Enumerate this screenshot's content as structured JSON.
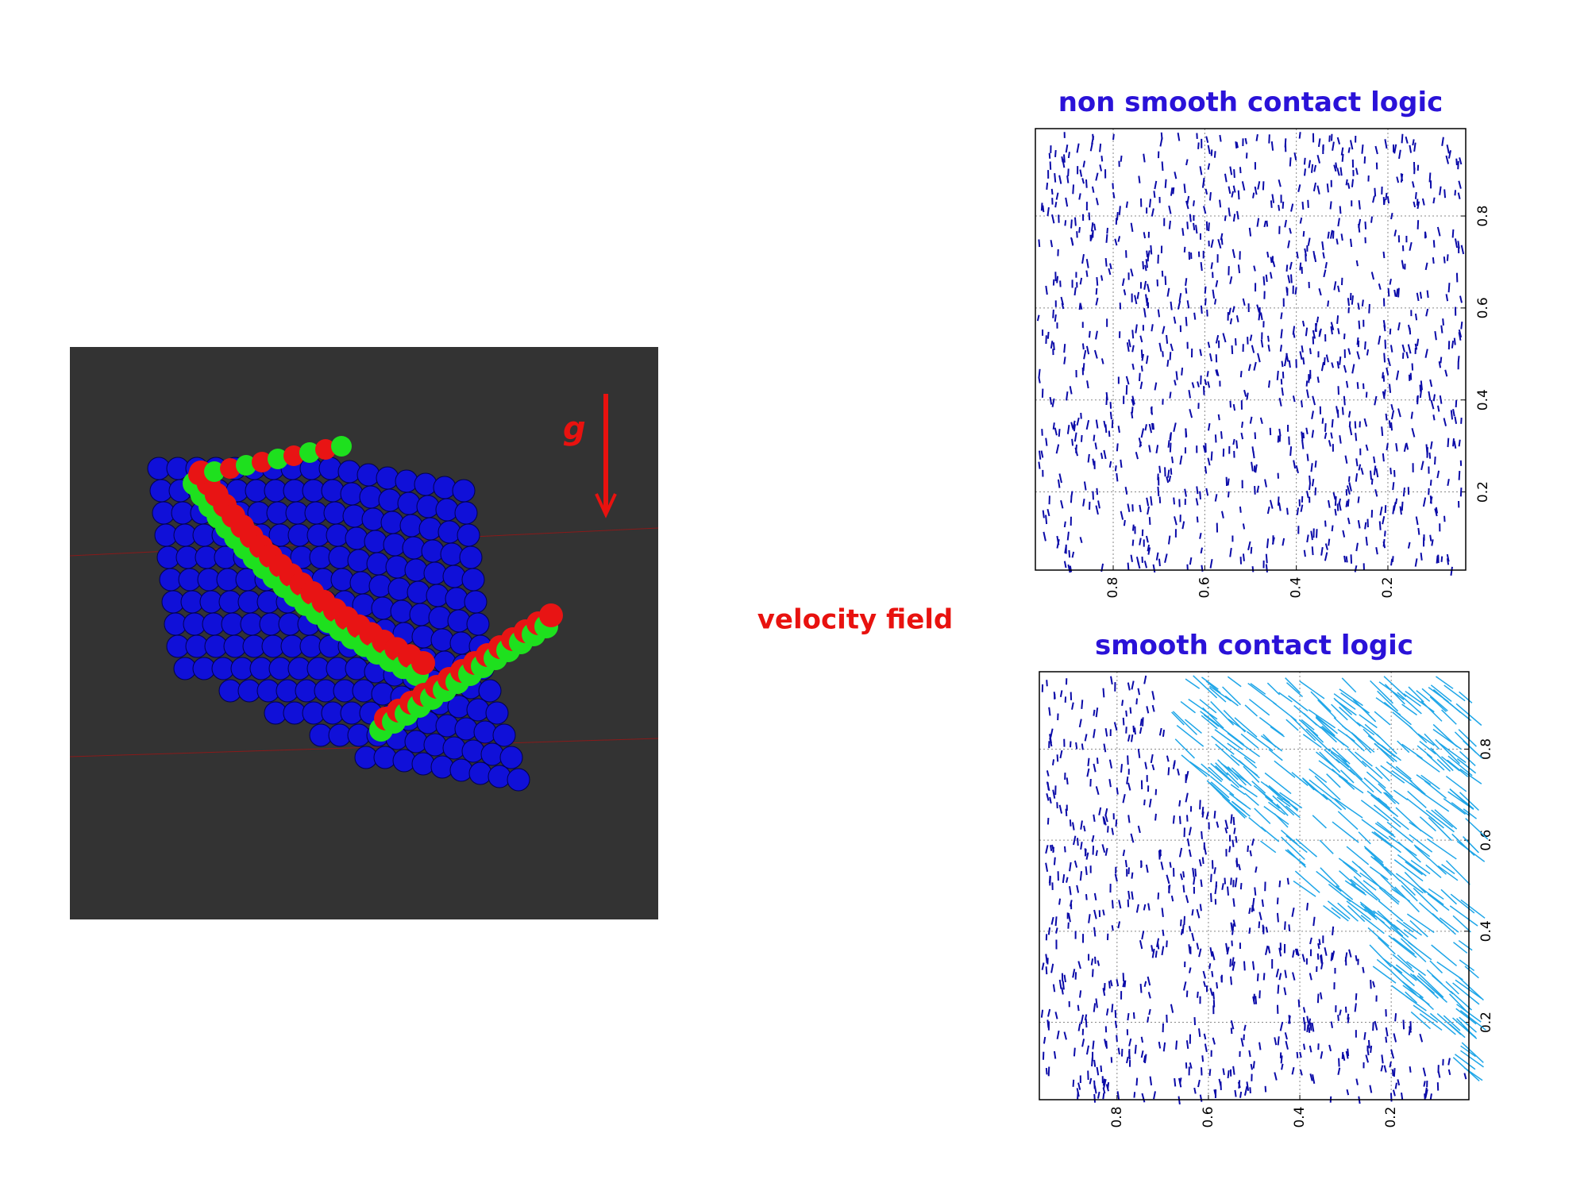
{
  "scene_label": "g",
  "center_label": "velocity field",
  "chart_data": [
    {
      "type": "quiver",
      "title": "non smooth contact logic",
      "xlim": [
        0.97,
        0.03
      ],
      "ylim": [
        0.03,
        0.99
      ],
      "xticks": [
        0.8,
        0.6,
        0.4,
        0.2
      ],
      "yticks": [
        0.2,
        0.4,
        0.6,
        0.8
      ],
      "grid": true
    },
    {
      "type": "quiver",
      "title": "smooth contact logic",
      "xlim": [
        0.97,
        0.03
      ],
      "ylim": [
        0.03,
        0.97
      ],
      "xticks": [
        0.8,
        0.6,
        0.4,
        0.2
      ],
      "yticks": [
        0.2,
        0.4,
        0.6,
        0.8
      ],
      "grid": true
    }
  ]
}
